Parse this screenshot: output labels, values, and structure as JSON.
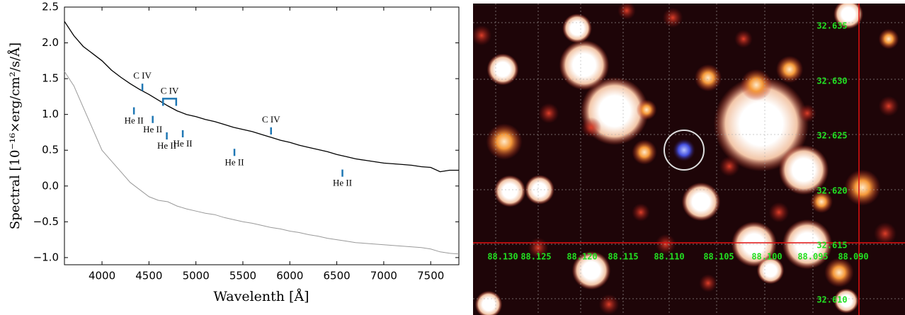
{
  "chart_data": {
    "type": "line",
    "y_label": "Spectral [10⁻¹⁶×erg/cm²/s/Å]",
    "x_label": "Wavelenth [Å]",
    "x": [
      3600,
      3700,
      3800,
      3900,
      4000,
      4100,
      4200,
      4300,
      4400,
      4500,
      4600,
      4700,
      4800,
      4900,
      5000,
      5100,
      5200,
      5300,
      5400,
      5500,
      5600,
      5700,
      5800,
      5900,
      6000,
      6100,
      6200,
      6300,
      6400,
      6500,
      6600,
      6700,
      6800,
      6900,
      7000,
      7100,
      7200,
      7300,
      7400,
      7500,
      7600,
      7700,
      7800
    ],
    "series": [
      {
        "color": "#000000",
        "values": [
          2.3,
          2.1,
          1.95,
          1.85,
          1.75,
          1.62,
          1.52,
          1.43,
          1.35,
          1.28,
          1.2,
          1.12,
          1.05,
          1.0,
          0.97,
          0.93,
          0.9,
          0.86,
          0.82,
          0.79,
          0.76,
          0.72,
          0.68,
          0.64,
          0.61,
          0.57,
          0.54,
          0.51,
          0.48,
          0.44,
          0.41,
          0.38,
          0.36,
          0.34,
          0.32,
          0.31,
          0.3,
          0.29,
          0.27,
          0.26,
          0.2,
          0.22,
          0.22
        ]
      },
      {
        "color": "#999999",
        "values": [
          1.6,
          1.4,
          1.1,
          0.8,
          0.5,
          0.35,
          0.2,
          0.05,
          -0.05,
          -0.15,
          -0.2,
          -0.22,
          -0.28,
          -0.32,
          -0.35,
          -0.38,
          -0.4,
          -0.44,
          -0.47,
          -0.5,
          -0.52,
          -0.55,
          -0.58,
          -0.6,
          -0.63,
          -0.65,
          -0.68,
          -0.7,
          -0.73,
          -0.75,
          -0.77,
          -0.79,
          -0.8,
          -0.81,
          -0.82,
          -0.83,
          -0.84,
          -0.85,
          -0.86,
          -0.88,
          -0.92,
          -0.94,
          -0.95
        ]
      }
    ],
    "xlim": [
      3600,
      7800
    ],
    "xticks": [
      4000,
      4500,
      5000,
      5500,
      6000,
      6500,
      7000,
      7500
    ],
    "ylim": [
      -1.1,
      2.5
    ],
    "yticks": [
      {
        "value": -1.0,
        "label": "−1.0"
      },
      {
        "value": -0.5,
        "label": "−0.5"
      },
      {
        "value": 0,
        "label": "0.0"
      },
      0.5,
      {
        "value": 1,
        "label": "1.0"
      },
      1.5,
      {
        "value": 2,
        "label": "2.0"
      },
      2.5
    ],
    "annotation_color": "#1f77b4",
    "annotations": [
      {
        "text": "C IV",
        "x": 4430,
        "y": 1.33,
        "position": "above"
      },
      {
        "text": "C IV",
        "x": 4650,
        "x2": 4790,
        "y": 1.12,
        "position": "above"
      },
      {
        "text": "He II",
        "x": 4340,
        "y": 1.0,
        "position": "below"
      },
      {
        "text": "He II",
        "x": 4540,
        "y": 0.88,
        "position": "below"
      },
      {
        "text": "He II",
        "x": 4690,
        "y": 0.65,
        "position": "below"
      },
      {
        "text": "He II",
        "x": 4860,
        "y": 0.68,
        "position": "below"
      },
      {
        "text": "C IV",
        "x": 5800,
        "y": 0.72,
        "position": "above"
      },
      {
        "text": "He II",
        "x": 5410,
        "y": 0.42,
        "position": "below"
      },
      {
        "text": "He II",
        "x": 6560,
        "y": 0.13,
        "position": "below"
      }
    ]
  },
  "image": {
    "ra_labels": [
      "88.130",
      "88.125",
      "88.120",
      "88.115",
      "88.110",
      "88.105",
      "88.100",
      "88.095",
      "88.090"
    ],
    "dec_labels": [
      "32.635",
      "32.630",
      "32.625",
      "32.620",
      "32.615",
      "32.610"
    ]
  }
}
